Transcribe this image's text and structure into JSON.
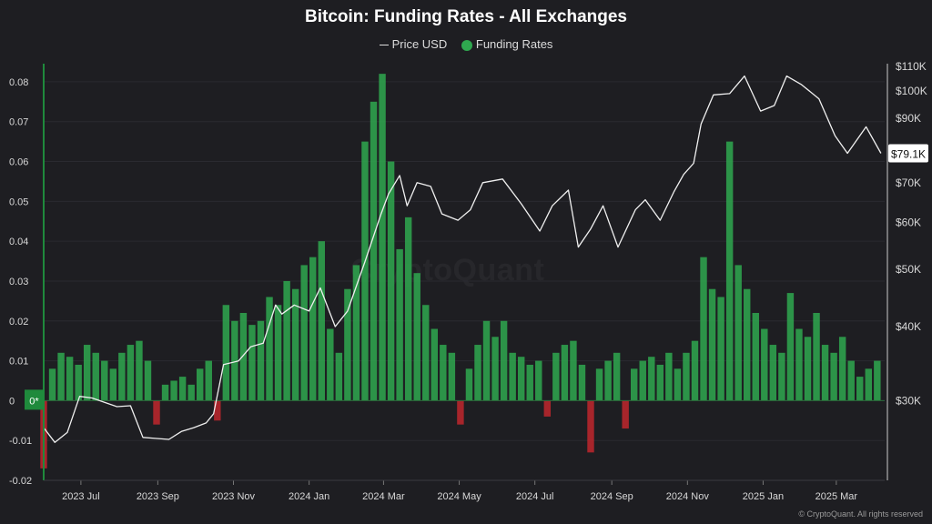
{
  "title": "Bitcoin: Funding Rates - All Exchanges",
  "legend": {
    "price_label": "Price USD",
    "funding_label": "Funding Rates"
  },
  "watermark": "CryptoQuant",
  "credit": "© CryptoQuant. All rights reserved",
  "colors": {
    "background": "#1e1e22",
    "positive": "#2fa84f",
    "negative": "#c0272d",
    "price": "#f0f0f0",
    "accent": "#1f8a3c"
  },
  "chart_data": {
    "type": "bar",
    "title": "Bitcoin: Funding Rates - All Exchanges",
    "x_tick_labels": [
      "2023 Jul",
      "2023 Sep",
      "2023 Nov",
      "2024 Jan",
      "2024 Mar",
      "2024 May",
      "2024 Jul",
      "2024 Sep",
      "2024 Nov",
      "2025 Jan",
      "2025 Mar"
    ],
    "x_range": [
      "2023-06-01",
      "2025-04-09"
    ],
    "left_axis": {
      "ticks": [
        "0.08",
        "0.07",
        "0.06",
        "0.05",
        "0.04",
        "0.03",
        "0.02",
        "0.01",
        "0",
        "-0.01",
        "-0.02"
      ],
      "range": [
        -0.02,
        0.085
      ]
    },
    "right_axis": {
      "scale": "log",
      "ticks": [
        "$110K",
        "$100K",
        "$90K",
        "$70K",
        "$60K",
        "$50K",
        "$40K",
        "$30K"
      ],
      "range": [
        22000,
        112000
      ]
    },
    "current_price_label": "$79.1K",
    "current_zero_label": "0*",
    "series": [
      {
        "name": "Funding Rates",
        "type": "bar",
        "x": [
          "2023-06-01",
          "2023-06-08",
          "2023-06-15",
          "2023-06-22",
          "2023-06-29",
          "2023-07-06",
          "2023-07-13",
          "2023-07-20",
          "2023-07-27",
          "2023-08-03",
          "2023-08-10",
          "2023-08-17",
          "2023-08-24",
          "2023-08-31",
          "2023-09-07",
          "2023-09-14",
          "2023-09-21",
          "2023-09-28",
          "2023-10-05",
          "2023-10-12",
          "2023-10-19",
          "2023-10-26",
          "2023-11-02",
          "2023-11-09",
          "2023-11-16",
          "2023-11-23",
          "2023-11-30",
          "2023-12-07",
          "2023-12-14",
          "2023-12-21",
          "2023-12-28",
          "2024-01-04",
          "2024-01-11",
          "2024-01-18",
          "2024-01-25",
          "2024-02-01",
          "2024-02-08",
          "2024-02-15",
          "2024-02-22",
          "2024-02-29",
          "2024-03-07",
          "2024-03-14",
          "2024-03-21",
          "2024-03-28",
          "2024-04-04",
          "2024-04-11",
          "2024-04-18",
          "2024-04-25",
          "2024-05-02",
          "2024-05-09",
          "2024-05-16",
          "2024-05-23",
          "2024-05-30",
          "2024-06-06",
          "2024-06-13",
          "2024-06-20",
          "2024-06-27",
          "2024-07-04",
          "2024-07-11",
          "2024-07-18",
          "2024-07-25",
          "2024-08-01",
          "2024-08-08",
          "2024-08-15",
          "2024-08-22",
          "2024-08-29",
          "2024-09-05",
          "2024-09-12",
          "2024-09-19",
          "2024-09-26",
          "2024-10-03",
          "2024-10-10",
          "2024-10-17",
          "2024-10-24",
          "2024-10-31",
          "2024-11-07",
          "2024-11-14",
          "2024-11-21",
          "2024-11-28",
          "2024-12-05",
          "2024-12-12",
          "2024-12-19",
          "2024-12-26",
          "2025-01-02",
          "2025-01-09",
          "2025-01-16",
          "2025-01-23",
          "2025-01-30",
          "2025-02-06",
          "2025-02-13",
          "2025-02-20",
          "2025-02-27",
          "2025-03-06",
          "2025-03-13",
          "2025-03-20",
          "2025-03-27",
          "2025-04-03"
        ],
        "values": [
          -0.017,
          0.008,
          0.012,
          0.011,
          0.009,
          0.014,
          0.012,
          0.01,
          0.008,
          0.012,
          0.014,
          0.015,
          0.01,
          -0.006,
          0.004,
          0.005,
          0.006,
          0.004,
          0.008,
          0.01,
          -0.005,
          0.024,
          0.02,
          0.022,
          0.019,
          0.02,
          0.026,
          0.024,
          0.03,
          0.028,
          0.034,
          0.036,
          0.04,
          0.018,
          0.012,
          0.028,
          0.034,
          0.065,
          0.075,
          0.082,
          0.06,
          0.038,
          0.046,
          0.032,
          0.024,
          0.018,
          0.014,
          0.012,
          -0.006,
          0.008,
          0.014,
          0.02,
          0.016,
          0.02,
          0.012,
          0.011,
          0.009,
          0.01,
          -0.004,
          0.012,
          0.014,
          0.015,
          0.009,
          -0.013,
          0.008,
          0.01,
          0.012,
          -0.007,
          0.008,
          0.01,
          0.011,
          0.009,
          0.012,
          0.008,
          0.012,
          0.015,
          0.036,
          0.028,
          0.026,
          0.065,
          0.034,
          0.028,
          0.022,
          0.018,
          0.014,
          0.012,
          0.027,
          0.018,
          0.016,
          0.022,
          0.014,
          0.012,
          0.016,
          0.01,
          0.006,
          0.008,
          0.01
        ]
      },
      {
        "name": "Price USD",
        "type": "line",
        "x": [
          "2023-06-01",
          "2023-06-10",
          "2023-06-20",
          "2023-06-30",
          "2023-07-10",
          "2023-07-20",
          "2023-07-30",
          "2023-08-10",
          "2023-08-20",
          "2023-08-30",
          "2023-09-10",
          "2023-09-20",
          "2023-09-30",
          "2023-10-10",
          "2023-10-16",
          "2023-10-24",
          "2023-11-05",
          "2023-11-15",
          "2023-11-25",
          "2023-12-05",
          "2023-12-10",
          "2023-12-20",
          "2024-01-01",
          "2024-01-10",
          "2024-01-22",
          "2024-02-01",
          "2024-02-15",
          "2024-02-28",
          "2024-03-05",
          "2024-03-14",
          "2024-03-20",
          "2024-03-28",
          "2024-04-08",
          "2024-04-17",
          "2024-04-30",
          "2024-05-10",
          "2024-05-20",
          "2024-06-05",
          "2024-06-20",
          "2024-07-05",
          "2024-07-15",
          "2024-07-28",
          "2024-08-05",
          "2024-08-15",
          "2024-08-25",
          "2024-09-06",
          "2024-09-20",
          "2024-09-28",
          "2024-10-10",
          "2024-10-21",
          "2024-10-29",
          "2024-11-06",
          "2024-11-12",
          "2024-11-22",
          "2024-12-05",
          "2024-12-17",
          "2024-12-30",
          "2025-01-10",
          "2025-01-20",
          "2025-02-01",
          "2025-02-15",
          "2025-02-28",
          "2025-03-10",
          "2025-03-25",
          "2025-04-06"
        ],
        "values": [
          27000,
          25500,
          26500,
          30500,
          30300,
          29800,
          29300,
          29400,
          26000,
          25900,
          25800,
          26600,
          27000,
          27500,
          28500,
          34500,
          35000,
          37000,
          37500,
          43500,
          42000,
          43500,
          42500,
          46500,
          40000,
          42500,
          51500,
          62000,
          67000,
          72000,
          64000,
          70000,
          69000,
          62000,
          60500,
          63000,
          70000,
          71000,
          64500,
          58000,
          64000,
          68000,
          54500,
          58500,
          64000,
          54500,
          63000,
          65500,
          60500,
          67500,
          72300,
          75500,
          88000,
          98500,
          99000,
          106000,
          92500,
          94500,
          106000,
          102500,
          97000,
          84000,
          78500,
          87000,
          78500
        ]
      }
    ]
  }
}
